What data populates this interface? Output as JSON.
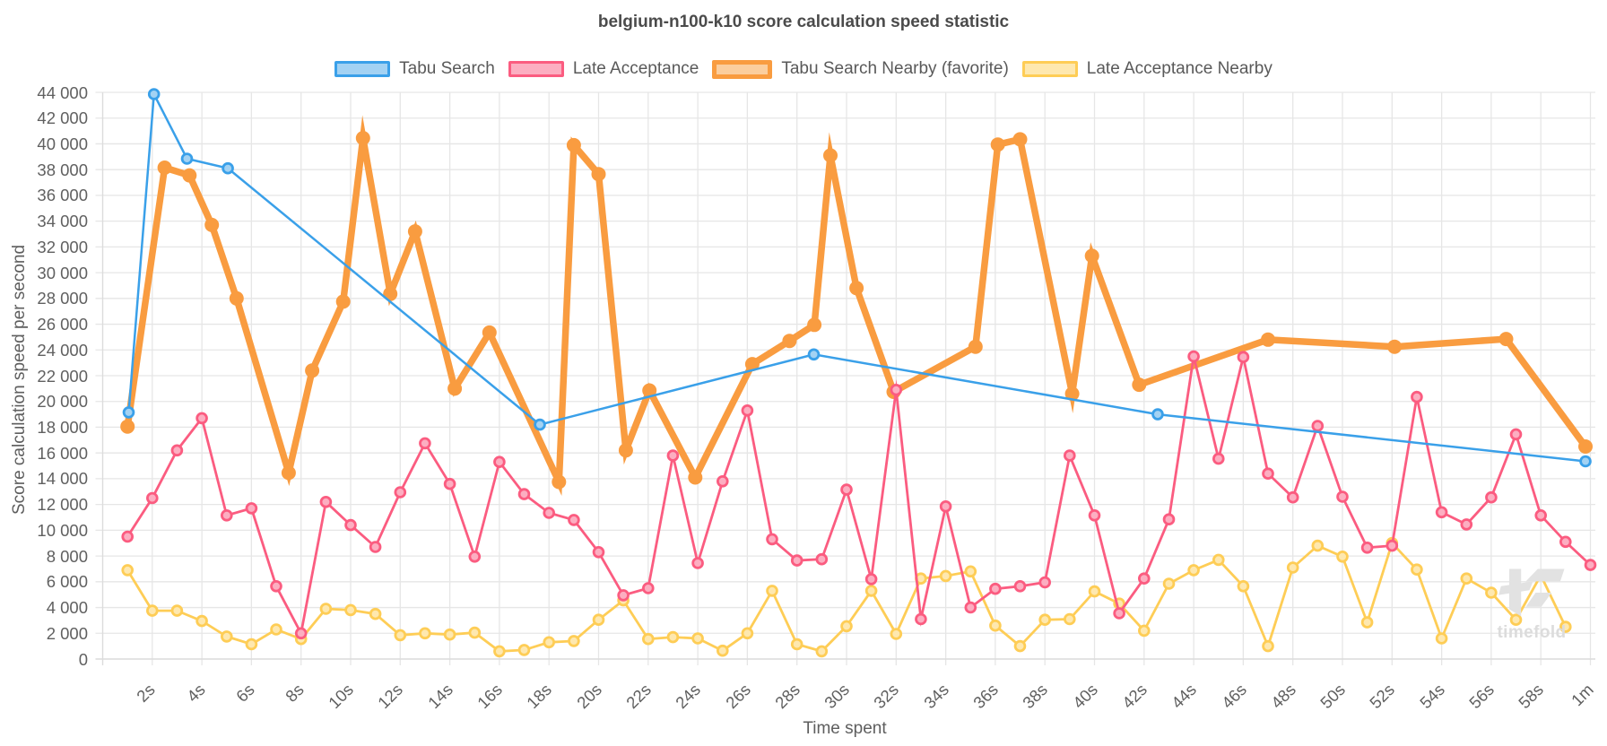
{
  "page": {
    "background": "#ffffff",
    "watermark_text": "timefold"
  },
  "chart_data": {
    "type": "line",
    "title": "belgium-n100-k10 score calculation speed statistic",
    "xlabel": "Time spent",
    "ylabel": "Score calculation speed per second",
    "xlim": [
      0,
      60.2
    ],
    "ylim": [
      0,
      44000
    ],
    "grid": true,
    "legend_position": "top",
    "x_ticks": [
      {
        "t": 2,
        "label": "2s"
      },
      {
        "t": 4,
        "label": "4s"
      },
      {
        "t": 6,
        "label": "6s"
      },
      {
        "t": 8,
        "label": "8s"
      },
      {
        "t": 10,
        "label": "10s"
      },
      {
        "t": 12,
        "label": "12s"
      },
      {
        "t": 14,
        "label": "14s"
      },
      {
        "t": 16,
        "label": "16s"
      },
      {
        "t": 18,
        "label": "18s"
      },
      {
        "t": 20,
        "label": "20s"
      },
      {
        "t": 22,
        "label": "22s"
      },
      {
        "t": 24,
        "label": "24s"
      },
      {
        "t": 26,
        "label": "26s"
      },
      {
        "t": 28,
        "label": "28s"
      },
      {
        "t": 30,
        "label": "30s"
      },
      {
        "t": 32,
        "label": "32s"
      },
      {
        "t": 34,
        "label": "34s"
      },
      {
        "t": 36,
        "label": "36s"
      },
      {
        "t": 38,
        "label": "38s"
      },
      {
        "t": 40,
        "label": "40s"
      },
      {
        "t": 42,
        "label": "42s"
      },
      {
        "t": 44,
        "label": "44s"
      },
      {
        "t": 46,
        "label": "46s"
      },
      {
        "t": 48,
        "label": "48s"
      },
      {
        "t": 50,
        "label": "50s"
      },
      {
        "t": 52,
        "label": "52s"
      },
      {
        "t": 54,
        "label": "54s"
      },
      {
        "t": 56,
        "label": "56s"
      },
      {
        "t": 58,
        "label": "58s"
      },
      {
        "t": 60,
        "label": "1m"
      }
    ],
    "y_ticks": [
      {
        "v": 0,
        "label": "0"
      },
      {
        "v": 2000,
        "label": "2 000"
      },
      {
        "v": 4000,
        "label": "4 000"
      },
      {
        "v": 6000,
        "label": "6 000"
      },
      {
        "v": 8000,
        "label": "8 000"
      },
      {
        "v": 10000,
        "label": "10 000"
      },
      {
        "v": 12000,
        "label": "12 000"
      },
      {
        "v": 14000,
        "label": "14 000"
      },
      {
        "v": 16000,
        "label": "16 000"
      },
      {
        "v": 18000,
        "label": "18 000"
      },
      {
        "v": 20000,
        "label": "20 000"
      },
      {
        "v": 22000,
        "label": "22 000"
      },
      {
        "v": 24000,
        "label": "24 000"
      },
      {
        "v": 26000,
        "label": "26 000"
      },
      {
        "v": 28000,
        "label": "28 000"
      },
      {
        "v": 30000,
        "label": "30 000"
      },
      {
        "v": 32000,
        "label": "32 000"
      },
      {
        "v": 34000,
        "label": "34 000"
      },
      {
        "v": 36000,
        "label": "36 000"
      },
      {
        "v": 38000,
        "label": "38 000"
      },
      {
        "v": 40000,
        "label": "40 000"
      },
      {
        "v": 42000,
        "label": "42 000"
      },
      {
        "v": 44000,
        "label": "44 000"
      }
    ],
    "series": [
      {
        "name": "Tabu Search",
        "color": "#3aa0e9",
        "marker_fill": "#a3d2f3",
        "line_width": 2.5,
        "marker_radius": 6.8,
        "marker_border": 2.8,
        "points": [
          [
            1.05,
            19150
          ],
          [
            2.07,
            43860
          ],
          [
            3.4,
            38850
          ],
          [
            5.05,
            38100
          ],
          [
            17.63,
            18200
          ],
          [
            28.68,
            23650
          ],
          [
            42.55,
            19000
          ],
          [
            59.8,
            15350
          ]
        ]
      },
      {
        "name": "Late Acceptance",
        "color": "#fb5c80",
        "marker_fill": "#fcaec1",
        "line_width": 2.8,
        "marker_radius": 6.8,
        "marker_border": 2.8,
        "points": [
          [
            1,
            9500
          ],
          [
            2,
            12500
          ],
          [
            3,
            16200
          ],
          [
            4,
            18700
          ],
          [
            5,
            11150
          ],
          [
            6,
            11700
          ],
          [
            7,
            5650
          ],
          [
            8,
            2000
          ],
          [
            9,
            12200
          ],
          [
            10,
            10400
          ],
          [
            11,
            8700
          ],
          [
            12,
            12950
          ],
          [
            13,
            16750
          ],
          [
            14,
            13600
          ],
          [
            15,
            7950
          ],
          [
            16,
            15300
          ],
          [
            17,
            12800
          ],
          [
            18,
            11350
          ],
          [
            19,
            10800
          ],
          [
            20,
            8300
          ],
          [
            21,
            4950
          ],
          [
            22,
            5500
          ],
          [
            23,
            15800
          ],
          [
            24,
            7450
          ],
          [
            25,
            13800
          ],
          [
            26,
            19300
          ],
          [
            27,
            9300
          ],
          [
            28,
            7650
          ],
          [
            29,
            7750
          ],
          [
            30,
            13150
          ],
          [
            31,
            6200
          ],
          [
            32,
            20900
          ],
          [
            33,
            3100
          ],
          [
            34,
            11850
          ],
          [
            35,
            4000
          ],
          [
            36,
            5450
          ],
          [
            37,
            5650
          ],
          [
            38,
            5950
          ],
          [
            39,
            15800
          ],
          [
            40,
            11150
          ],
          [
            41,
            3550
          ],
          [
            42,
            6250
          ],
          [
            43,
            10850
          ],
          [
            44,
            23500
          ],
          [
            45,
            15550
          ],
          [
            46,
            23450
          ],
          [
            47,
            14400
          ],
          [
            48,
            12550
          ],
          [
            49,
            18100
          ],
          [
            50,
            12600
          ],
          [
            51,
            8650
          ],
          [
            52,
            8800
          ],
          [
            53,
            20350
          ],
          [
            54,
            11400
          ],
          [
            55,
            10450
          ],
          [
            56,
            12550
          ],
          [
            57,
            17450
          ],
          [
            58,
            11150
          ],
          [
            59,
            9100
          ],
          [
            60,
            7300
          ]
        ]
      },
      {
        "name": "Tabu Search Nearby (favorite)",
        "color": "#f99c40",
        "marker_fill": "#f99c40",
        "line_width": 7.5,
        "marker_radius": 8,
        "marker_border": 0,
        "points": [
          [
            1.0,
            18050
          ],
          [
            2.5,
            38150
          ],
          [
            3.5,
            37550
          ],
          [
            4.4,
            33700
          ],
          [
            5.4,
            28000
          ],
          [
            7.5,
            14450
          ],
          [
            8.45,
            22400
          ],
          [
            9.7,
            27750
          ],
          [
            10.5,
            40450
          ],
          [
            11.6,
            28350
          ],
          [
            12.6,
            33200
          ],
          [
            14.2,
            21000
          ],
          [
            15.6,
            25350
          ],
          [
            18.4,
            13750
          ],
          [
            19.0,
            39900
          ],
          [
            20.0,
            37650
          ],
          [
            21.1,
            16200
          ],
          [
            22.05,
            20850
          ],
          [
            23.9,
            14100
          ],
          [
            26.2,
            22900
          ],
          [
            27.7,
            24700
          ],
          [
            28.7,
            25950
          ],
          [
            29.35,
            39100
          ],
          [
            30.4,
            28800
          ],
          [
            31.9,
            20750
          ],
          [
            35.2,
            24250
          ],
          [
            36.1,
            39950
          ],
          [
            37.0,
            40350
          ],
          [
            39.1,
            20600
          ],
          [
            39.9,
            31300
          ],
          [
            41.8,
            21300
          ],
          [
            47.0,
            24800
          ],
          [
            52.1,
            24250
          ],
          [
            56.6,
            24850
          ],
          [
            59.8,
            16500
          ]
        ]
      },
      {
        "name": "Late Acceptance Nearby",
        "color": "#fecd56",
        "marker_fill": "#fee8af",
        "line_width": 2.8,
        "marker_radius": 6.8,
        "marker_border": 2.8,
        "points": [
          [
            1,
            6900
          ],
          [
            2,
            3750
          ],
          [
            3,
            3750
          ],
          [
            4,
            2950
          ],
          [
            5,
            1750
          ],
          [
            6,
            1150
          ],
          [
            7,
            2300
          ],
          [
            8,
            1550
          ],
          [
            9,
            3900
          ],
          [
            10,
            3800
          ],
          [
            11,
            3500
          ],
          [
            12,
            1850
          ],
          [
            13,
            2000
          ],
          [
            14,
            1900
          ],
          [
            15,
            2050
          ],
          [
            16,
            600
          ],
          [
            17,
            700
          ],
          [
            18,
            1300
          ],
          [
            19,
            1400
          ],
          [
            20,
            3050
          ],
          [
            21,
            4550
          ],
          [
            22,
            1550
          ],
          [
            23,
            1700
          ],
          [
            24,
            1600
          ],
          [
            25,
            650
          ],
          [
            26,
            2000
          ],
          [
            27,
            5300
          ],
          [
            28,
            1150
          ],
          [
            29,
            600
          ],
          [
            30,
            2550
          ],
          [
            31,
            5300
          ],
          [
            32,
            1950
          ],
          [
            33,
            6250
          ],
          [
            34,
            6450
          ],
          [
            35,
            6800
          ],
          [
            36,
            2600
          ],
          [
            37,
            1000
          ],
          [
            38,
            3050
          ],
          [
            39,
            3100
          ],
          [
            40,
            5250
          ],
          [
            41,
            4300
          ],
          [
            42,
            2200
          ],
          [
            43,
            5850
          ],
          [
            44,
            6900
          ],
          [
            45,
            7700
          ],
          [
            46,
            5650
          ],
          [
            47,
            1000
          ],
          [
            48,
            7100
          ],
          [
            49,
            8800
          ],
          [
            50,
            7950
          ],
          [
            51,
            2850
          ],
          [
            52,
            9000
          ],
          [
            53,
            6950
          ],
          [
            54,
            1600
          ],
          [
            55,
            6250
          ],
          [
            56,
            5150
          ],
          [
            57,
            3050
          ],
          [
            58,
            6500
          ],
          [
            59,
            2500
          ]
        ]
      }
    ]
  }
}
